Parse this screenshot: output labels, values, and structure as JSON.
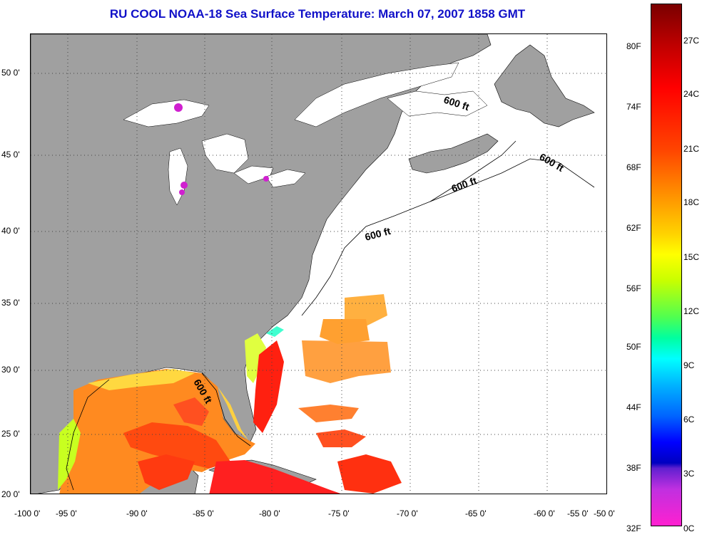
{
  "title": "RU COOL  NOAA-18  Sea Surface Temperature:  March 07, 2007 1858 GMT",
  "lat_ticks": [
    "50 0'",
    "45 0'",
    "40 0'",
    "35 0'",
    "30 0'",
    "25 0'",
    "20 0'"
  ],
  "lon_ticks": [
    "-100 0'",
    "-95 0'",
    "-90 0'",
    "-85 0'",
    "-80 0'",
    "-75 0'",
    "-70 0'",
    "-65 0'",
    "-60 0'",
    "-55 0'",
    "-50 0'"
  ],
  "isobath_label": "600 ft",
  "colorbar": {
    "fahrenheit": [
      "80F",
      "74F",
      "68F",
      "62F",
      "56F",
      "50F",
      "44F",
      "38F",
      "32F"
    ],
    "celsius": [
      "27C",
      "24C",
      "21C",
      "18C",
      "15C",
      "12C",
      "9C",
      "6C",
      "3C",
      "0C"
    ]
  },
  "colors": {
    "land": "#a0a0a0",
    "ocean_nodata": "#ffffff",
    "title": "#1010c8"
  }
}
